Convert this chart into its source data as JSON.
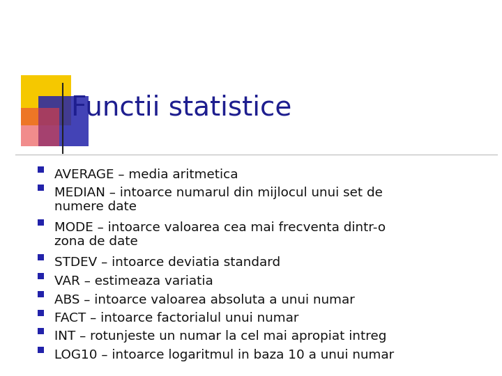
{
  "title": "Functii statistice",
  "title_color": "#1E1E8F",
  "title_fontsize": 28,
  "background_color": "#FFFFFF",
  "bullet_color": "#2222AA",
  "text_color": "#111111",
  "bullet_fontsize": 13.2,
  "bullets": [
    [
      "AVERAGE – media aritmetica"
    ],
    [
      "MEDIAN – intoarce numarul din mijlocul unui set de",
      "numere date"
    ],
    [
      "MODE – intoarce valoarea cea mai frecventa dintr-o",
      "zona de date"
    ],
    [
      "STDEV – intoarce deviatia standard"
    ],
    [
      "VAR – estimeaza variatia"
    ],
    [
      "ABS – intoarce valoarea absoluta a unui numar"
    ],
    [
      "FACT – intoarce factorialul unui numar"
    ],
    [
      "INT – rotunjeste un numar la cel mai apropiat intreg"
    ],
    [
      "LOG10 – intoarce logaritmul in baza 10 a unui numar"
    ]
  ],
  "line_color": "#BBBBBB",
  "line_lw": 0.8,
  "yellow_color": "#F5C800",
  "blue_color": "#2222AA",
  "red_color": "#E84040"
}
